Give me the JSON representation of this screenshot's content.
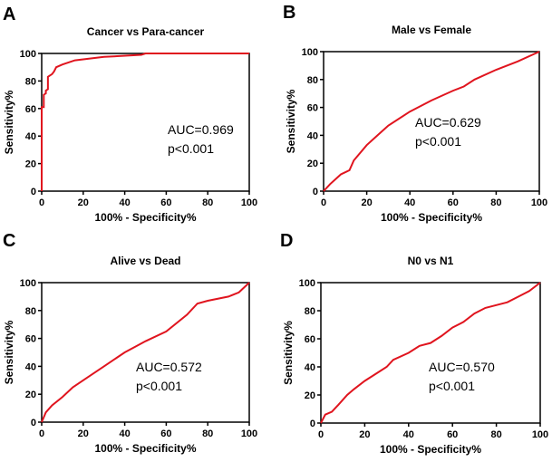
{
  "chart_data": [
    {
      "panel": "A",
      "type": "line",
      "title": "Cancer vs Para-cancer",
      "xlabel": "100% - Specificity%",
      "ylabel": "Sensitivity%",
      "xlim": [
        0,
        100
      ],
      "ylim": [
        0,
        100
      ],
      "xticks": [
        0,
        20,
        40,
        60,
        80,
        100
      ],
      "yticks": [
        0,
        20,
        40,
        60,
        80,
        100
      ],
      "annotation": [
        "AUC=0.969",
        "p<0.001"
      ],
      "color": "#e0141e",
      "x": [
        0,
        0,
        1,
        1,
        2,
        2,
        3,
        3,
        5,
        6,
        7,
        10,
        16,
        30,
        48,
        50,
        100
      ],
      "y": [
        0,
        61,
        61,
        70,
        71,
        73,
        74,
        83,
        85,
        87,
        90,
        92,
        95,
        97.5,
        99,
        100,
        100
      ]
    },
    {
      "panel": "B",
      "type": "line",
      "title": "Male vs Female",
      "xlabel": "100% - Specificity%",
      "ylabel": "Sensitivity%",
      "xlim": [
        0,
        100
      ],
      "ylim": [
        0,
        100
      ],
      "xticks": [
        0,
        20,
        40,
        60,
        80,
        100
      ],
      "yticks": [
        0,
        20,
        40,
        60,
        80,
        100
      ],
      "annotation": [
        "AUC=0.629",
        "p<0.001"
      ],
      "color": "#e0141e",
      "x": [
        0,
        3,
        8,
        12,
        14,
        20,
        25,
        30,
        40,
        50,
        60,
        65,
        70,
        80,
        90,
        100
      ],
      "y": [
        0,
        5,
        12,
        15,
        22,
        33,
        40,
        47,
        57,
        65,
        72,
        75,
        80,
        87,
        93,
        100
      ]
    },
    {
      "panel": "C",
      "type": "line",
      "title": "Alive vs Dead",
      "xlabel": "100% - Specificity%",
      "ylabel": "Sensitivity%",
      "xlim": [
        0,
        100
      ],
      "ylim": [
        0,
        100
      ],
      "xticks": [
        0,
        20,
        40,
        60,
        80,
        100
      ],
      "yticks": [
        0,
        20,
        40,
        60,
        80,
        100
      ],
      "annotation": [
        "AUC=0.572",
        "p<0.001"
      ],
      "color": "#e0141e",
      "x": [
        0,
        2,
        5,
        10,
        15,
        20,
        30,
        40,
        50,
        60,
        70,
        75,
        80,
        90,
        95,
        100
      ],
      "y": [
        0,
        7,
        12,
        18,
        25,
        30,
        40,
        50,
        58,
        65,
        77,
        85,
        87,
        90,
        93,
        100
      ]
    },
    {
      "panel": "D",
      "type": "line",
      "title": "N0 vs N1",
      "xlabel": "100% - Specificity%",
      "ylabel": "Sensitivity%",
      "xlim": [
        0,
        100
      ],
      "ylim": [
        0,
        100
      ],
      "xticks": [
        0,
        20,
        40,
        60,
        80,
        100
      ],
      "yticks": [
        0,
        20,
        40,
        60,
        80,
        100
      ],
      "annotation": [
        "AUC=0.570",
        "p<0.001"
      ],
      "color": "#e0141e",
      "x": [
        0,
        2,
        5,
        8,
        12,
        15,
        20,
        25,
        30,
        33,
        40,
        45,
        50,
        55,
        60,
        65,
        70,
        75,
        80,
        85,
        90,
        95,
        100
      ],
      "y": [
        0,
        6,
        8,
        13,
        20,
        24,
        30,
        35,
        40,
        45,
        50,
        55,
        57,
        62,
        68,
        72,
        78,
        82,
        84,
        86,
        90,
        94,
        100
      ]
    }
  ]
}
